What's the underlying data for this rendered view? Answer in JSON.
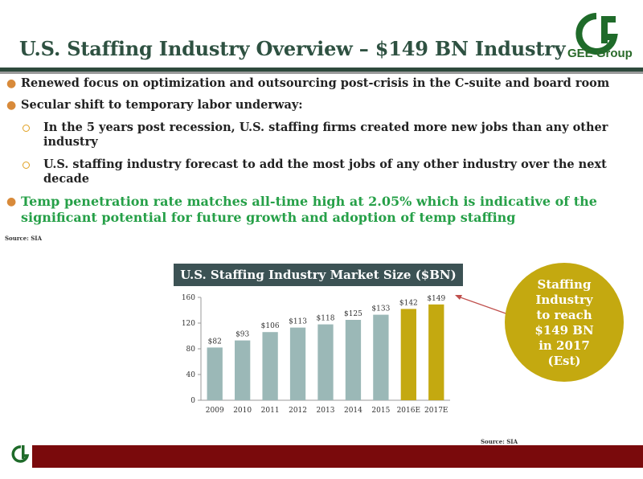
{
  "title": "U.S. Staffing Industry Overview – $149 BN Industry",
  "logo": {
    "text": "GEE Group",
    "icon": "gee-group-g-logo",
    "color": "#1f6b2a"
  },
  "bullets": [
    {
      "text": "Renewed focus on optimization and outsourcing post-crisis in the C-suite and board room"
    },
    {
      "text": "Secular shift to temporary labor underway:"
    },
    {
      "sub": true,
      "lines": [
        "In the 5 years post recession, U.S. staffing firms created more new jobs than any other",
        "industry"
      ]
    },
    {
      "sub": true,
      "lines": [
        "U.S. staffing industry forecast to add the most jobs of any other industry over the next",
        "decade"
      ]
    },
    {
      "highlight": true,
      "lines": [
        "Temp penetration rate matches all-time high at 2.05% which is indicative of the",
        "significant potential for future growth and adoption of temp staffing"
      ]
    }
  ],
  "source_top": "Source: SIA",
  "source_bottom": "Source: SIA",
  "callout": {
    "lines": [
      "Staffing",
      "Industry",
      "to reach",
      "$149 BN",
      "in 2017",
      "(Est)"
    ]
  },
  "chart_data": {
    "type": "bar",
    "title": "U.S. Staffing Industry Market Size ($BN)",
    "categories": [
      "2009",
      "2010",
      "2011",
      "2012",
      "2013",
      "2014",
      "2015",
      "2016E",
      "2017E"
    ],
    "values": [
      82,
      93,
      106,
      113,
      118,
      125,
      133,
      142,
      149
    ],
    "labels": [
      "$82",
      "$93",
      "$106",
      "$113",
      "$118",
      "$125",
      "$133",
      "$142",
      "$149"
    ],
    "colors": [
      "#9bb8b7",
      "#9bb8b7",
      "#9bb8b7",
      "#9bb8b7",
      "#9bb8b7",
      "#9bb8b7",
      "#9bb8b7",
      "#c4a910",
      "#c4a910"
    ],
    "yticks": [
      "0",
      "40",
      "80",
      "120",
      "160"
    ],
    "ylim": [
      0,
      160
    ],
    "grid": false
  }
}
